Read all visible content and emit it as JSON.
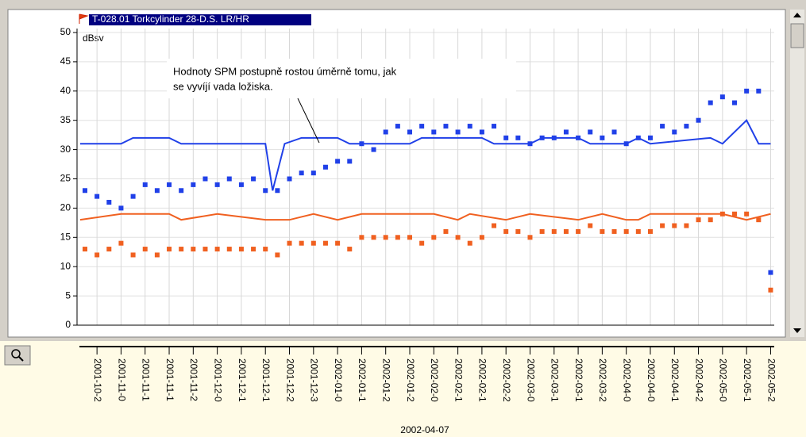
{
  "chart_data": {
    "type": "scatter",
    "title": "T-028.01 Torkcylinder 28-D.S. LR/HR",
    "y_unit": "dBsv",
    "annotation": [
      "Hodnoty SPM postupně rostou úměrně tomu, jak",
      "se vyvíjí vada ložiska."
    ],
    "cursor_label": "2002-04-07",
    "ylim": [
      0,
      50
    ],
    "yticks": [
      0,
      5,
      10,
      15,
      20,
      25,
      30,
      35,
      40,
      45,
      50
    ],
    "xlim": [
      -0.83,
      28.15
    ],
    "xticks": [
      {
        "value": 0,
        "label": "2001-10-2"
      },
      {
        "value": 1,
        "label": "2001-11-0"
      },
      {
        "value": 2,
        "label": "2001-11-1"
      },
      {
        "value": 3,
        "label": "2001-11-1"
      },
      {
        "value": 4,
        "label": "2001-11-2"
      },
      {
        "value": 5,
        "label": "2001-12-0"
      },
      {
        "value": 6,
        "label": "2001-12-1"
      },
      {
        "value": 7,
        "label": "2001-12-1"
      },
      {
        "value": 8,
        "label": "2001-12-2"
      },
      {
        "value": 9,
        "label": "2001-12-3"
      },
      {
        "value": 10,
        "label": "2002-01-0"
      },
      {
        "value": 11,
        "label": "2002-01-1"
      },
      {
        "value": 12,
        "label": "2002-01-2"
      },
      {
        "value": 13,
        "label": "2002-01-2"
      },
      {
        "value": 14,
        "label": "2002-02-0"
      },
      {
        "value": 15,
        "label": "2002-02-1"
      },
      {
        "value": 16,
        "label": "2002-02-1"
      },
      {
        "value": 17,
        "label": "2002-02-2"
      },
      {
        "value": 18,
        "label": "2002-03-0"
      },
      {
        "value": 19,
        "label": "2002-03-1"
      },
      {
        "value": 20,
        "label": "2002-03-1"
      },
      {
        "value": 21,
        "label": "2002-03-2"
      },
      {
        "value": 22,
        "label": "2002-04-0"
      },
      {
        "value": 23,
        "label": "2002-04-0"
      },
      {
        "value": 24,
        "label": "2002-04-1"
      },
      {
        "value": 25,
        "label": "2002-04-2"
      },
      {
        "value": 26,
        "label": "2002-05-0"
      },
      {
        "value": 27,
        "label": "2002-05-1"
      },
      {
        "value": 28,
        "label": "2002-05-2"
      }
    ],
    "grid": true,
    "series": [
      {
        "style": "line",
        "color": "#2040e8",
        "x": [
          -0.7,
          1,
          1.5,
          3,
          3.5,
          7,
          7.3,
          7.8,
          8.5,
          10,
          10.5,
          13,
          13.5,
          16,
          16.5,
          18,
          18.5,
          20,
          20.5,
          22,
          22.5,
          23,
          25.5,
          26,
          27,
          27.5,
          28
        ],
        "values": [
          31,
          31,
          32,
          32,
          31,
          31,
          23,
          31,
          32,
          32,
          31,
          31,
          32,
          32,
          31,
          31,
          32,
          32,
          31,
          31,
          32,
          31,
          32,
          31,
          35,
          31,
          31
        ]
      },
      {
        "style": "line",
        "color": "#f06020",
        "x": [
          -0.7,
          1,
          3,
          3.5,
          5,
          7,
          8,
          9,
          10,
          11,
          14,
          15,
          15.5,
          17,
          18,
          20,
          21,
          22,
          22.5,
          23,
          26,
          27,
          28
        ],
        "values": [
          18,
          19,
          19,
          18,
          19,
          18,
          18,
          19,
          18,
          19,
          19,
          18,
          19,
          18,
          19,
          18,
          19,
          18,
          18,
          19,
          19,
          18,
          19
        ]
      },
      {
        "style": "square",
        "color": "#2040e8",
        "x": [
          -0.5,
          0,
          0.5,
          1,
          1.5,
          2,
          2.5,
          3,
          3.5,
          4,
          4.5,
          5,
          5.5,
          6,
          6.5,
          7,
          7.5,
          8,
          8.5,
          9,
          9.5,
          10,
          10.5,
          11,
          11.5,
          12,
          12.5,
          13,
          13.5,
          14,
          14.5,
          15,
          15.5,
          16,
          16.5,
          17,
          17.5,
          18,
          18.5,
          19,
          19.5,
          20,
          20.5,
          21,
          21.5,
          22,
          22.5,
          23,
          23.5,
          24,
          24.5,
          25,
          25.5,
          26,
          26.5,
          27,
          27.5,
          28
        ],
        "values": [
          23,
          22,
          21,
          20,
          22,
          24,
          23,
          24,
          23,
          24,
          25,
          24,
          25,
          24,
          25,
          23,
          23,
          25,
          26,
          26,
          27,
          28,
          28,
          31,
          30,
          33,
          34,
          33,
          34,
          33,
          34,
          33,
          34,
          33,
          34,
          32,
          32,
          31,
          32,
          32,
          33,
          32,
          33,
          32,
          33,
          31,
          32,
          32,
          34,
          33,
          34,
          35,
          38,
          39,
          38,
          40,
          40,
          9
        ]
      },
      {
        "style": "square",
        "color": "#f06020",
        "x": [
          -0.5,
          0,
          0.5,
          1,
          1.5,
          2,
          2.5,
          3,
          3.5,
          4,
          4.5,
          5,
          5.5,
          6,
          6.5,
          7,
          7.5,
          8,
          8.5,
          9,
          9.5,
          10,
          10.5,
          11,
          11.5,
          12,
          12.5,
          13,
          13.5,
          14,
          14.5,
          15,
          15.5,
          16,
          16.5,
          17,
          17.5,
          18,
          18.5,
          19,
          19.5,
          20,
          20.5,
          21,
          21.5,
          22,
          22.5,
          23,
          23.5,
          24,
          24.5,
          25,
          25.5,
          26,
          26.5,
          27,
          27.5,
          28
        ],
        "values": [
          13,
          12,
          13,
          14,
          12,
          13,
          12,
          13,
          13,
          13,
          13,
          13,
          13,
          13,
          13,
          13,
          12,
          14,
          14,
          14,
          14,
          14,
          13,
          15,
          15,
          15,
          15,
          15,
          14,
          15,
          16,
          15,
          14,
          15,
          17,
          16,
          16,
          15,
          16,
          16,
          16,
          16,
          17,
          16,
          16,
          16,
          16,
          16,
          17,
          17,
          17,
          18,
          18,
          19,
          19,
          19,
          18,
          6
        ]
      }
    ]
  }
}
